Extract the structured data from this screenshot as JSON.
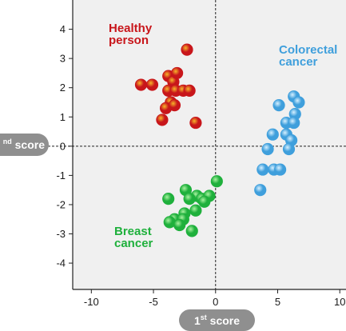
{
  "chart_data": {
    "type": "scatter",
    "xlim": [
      -11.5,
      10.5
    ],
    "ylim": [
      -4.9,
      5.0
    ],
    "x_ticks": [
      -10,
      -5,
      0,
      5,
      10
    ],
    "y_ticks": [
      4,
      3,
      2,
      1,
      0,
      -1,
      -2,
      -3,
      -4
    ],
    "x_tick_labels": [
      "-10",
      "-5",
      "0",
      "5",
      "10"
    ],
    "y_tick_labels": [
      "4",
      "3",
      "2",
      "1",
      "0",
      "-1",
      "-2",
      "-3",
      "-4"
    ],
    "xlabel": {
      "main_a": "1",
      "sup": "st",
      "main_b": " score"
    },
    "ylabel": {
      "sup": "nd",
      "main_b": " score"
    },
    "grid": false,
    "reference_lines": {
      "x": 0,
      "y": 0,
      "style": "dashed"
    },
    "series": [
      {
        "name": "Healthy person",
        "label_lines": [
          "Healthy",
          "person"
        ],
        "color": "#c8161b",
        "highlight": "#f7b52a",
        "points": [
          [
            -2.3,
            3.3
          ],
          [
            -6.0,
            2.1
          ],
          [
            -5.1,
            2.1
          ],
          [
            -3.8,
            2.4
          ],
          [
            -3.4,
            2.2
          ],
          [
            -3.1,
            2.5
          ],
          [
            -3.8,
            1.9
          ],
          [
            -3.2,
            1.9
          ],
          [
            -2.6,
            1.9
          ],
          [
            -2.1,
            1.9
          ],
          [
            -3.6,
            1.5
          ],
          [
            -4.0,
            1.3
          ],
          [
            -3.3,
            1.4
          ],
          [
            -4.3,
            0.9
          ],
          [
            -1.6,
            0.8
          ]
        ]
      },
      {
        "name": "Colorectal cancer",
        "label_lines": [
          "Colorectal",
          "cancer"
        ],
        "color": "#3f9fdc",
        "highlight": "#d6f0ff",
        "points": [
          [
            6.3,
            1.7
          ],
          [
            6.7,
            1.5
          ],
          [
            5.1,
            1.4
          ],
          [
            6.4,
            1.1
          ],
          [
            5.7,
            0.8
          ],
          [
            6.3,
            0.8
          ],
          [
            4.6,
            0.4
          ],
          [
            5.7,
            0.4
          ],
          [
            6.1,
            0.2
          ],
          [
            4.2,
            -0.1
          ],
          [
            5.9,
            -0.1
          ],
          [
            3.8,
            -0.8
          ],
          [
            4.7,
            -0.8
          ],
          [
            5.2,
            -0.8
          ],
          [
            3.6,
            -1.5
          ]
        ]
      },
      {
        "name": "Breast cancer",
        "label_lines": [
          "Breast",
          "cancer"
        ],
        "color": "#1fb03c",
        "highlight": "#a8f2a0",
        "points": [
          [
            0.1,
            -1.2
          ],
          [
            -2.4,
            -1.5
          ],
          [
            -1.5,
            -1.7
          ],
          [
            -1.1,
            -1.8
          ],
          [
            -0.5,
            -1.7
          ],
          [
            -3.8,
            -1.8
          ],
          [
            -2.1,
            -1.8
          ],
          [
            -0.9,
            -1.9
          ],
          [
            -1.6,
            -2.2
          ],
          [
            -2.5,
            -2.3
          ],
          [
            -3.3,
            -2.5
          ],
          [
            -2.6,
            -2.5
          ],
          [
            -3.7,
            -2.6
          ],
          [
            -2.9,
            -2.7
          ],
          [
            -1.9,
            -2.9
          ]
        ]
      }
    ]
  }
}
